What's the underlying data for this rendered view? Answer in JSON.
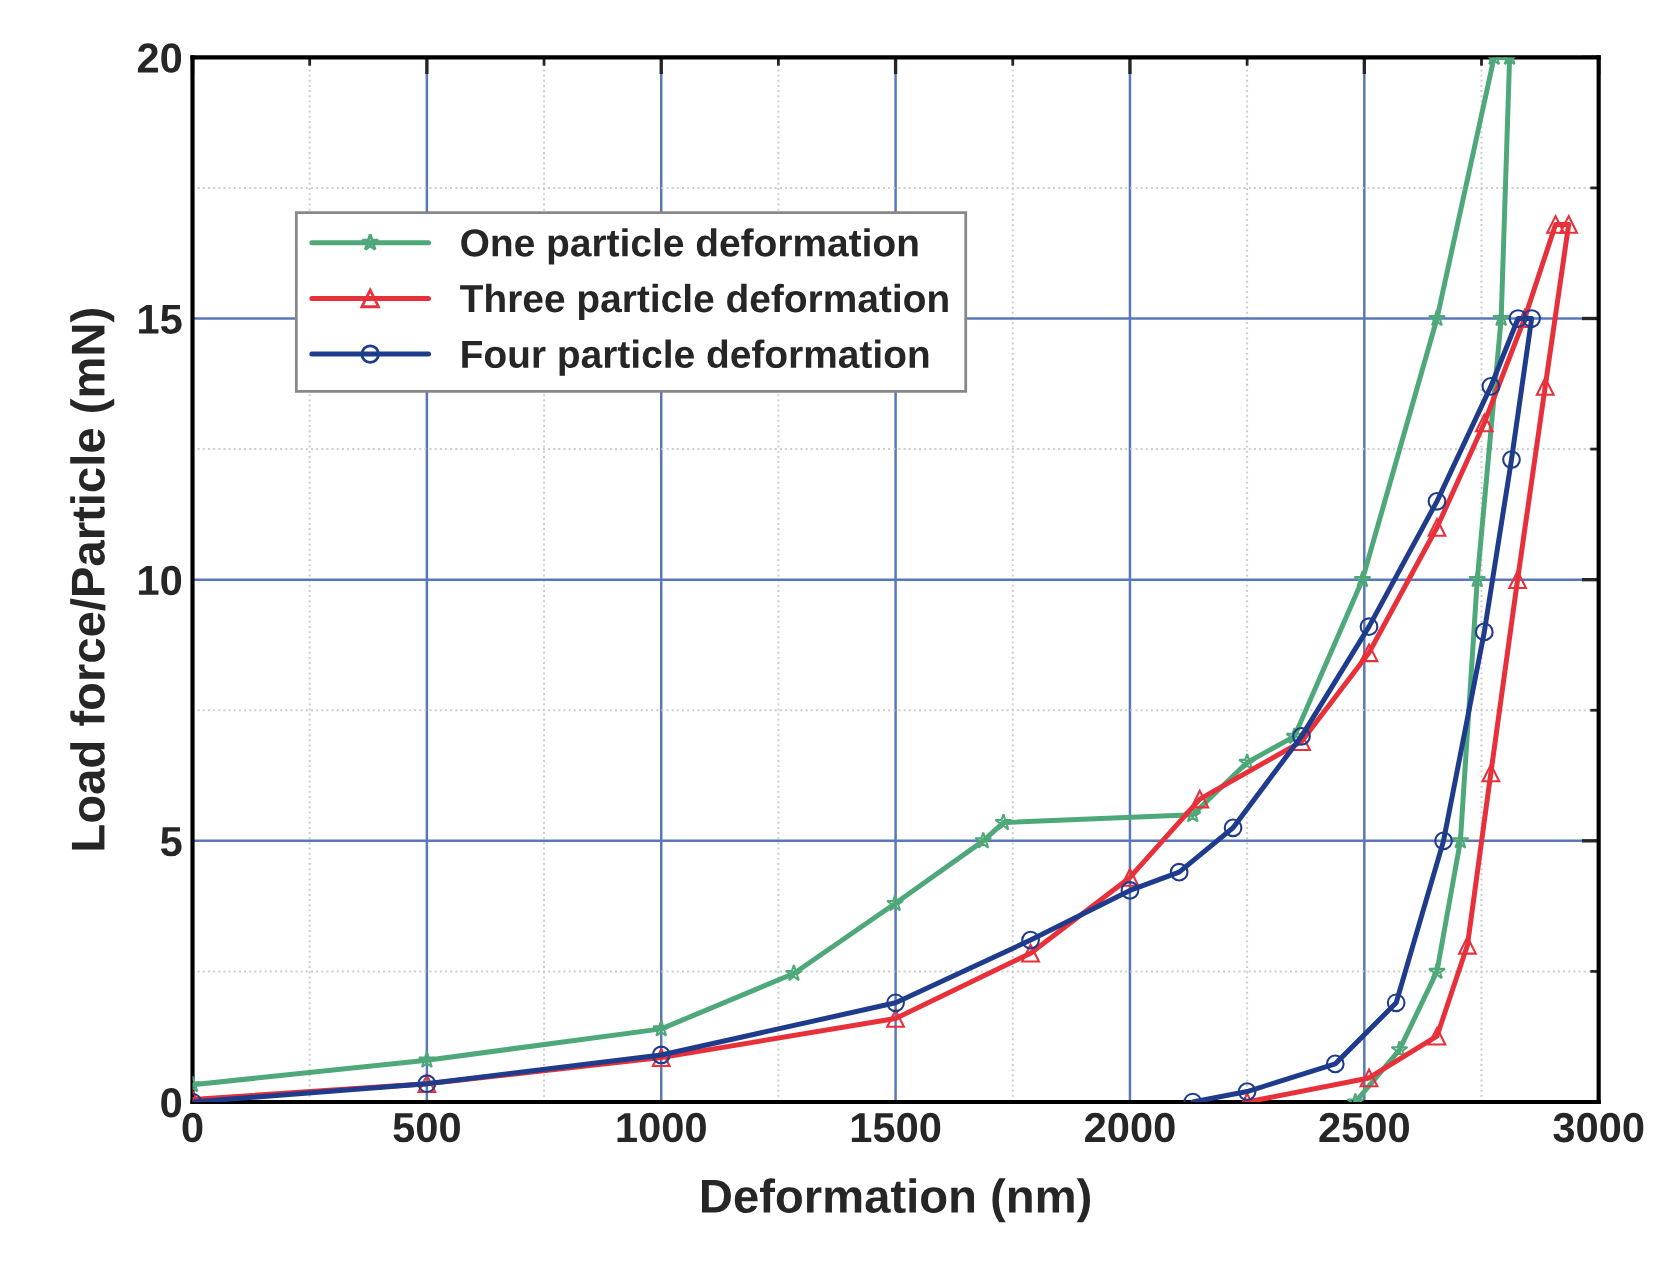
{
  "chart_data": {
    "type": "line",
    "xlabel": "Deformation (nm)",
    "ylabel": "Load force/Particle (mN)",
    "xlim": [
      0,
      3000
    ],
    "xticks": [
      0,
      500,
      1000,
      1500,
      2000,
      2500,
      3000
    ],
    "ylim": [
      0,
      20
    ],
    "yticks": [
      0,
      5,
      10,
      15,
      20
    ],
    "grid": true,
    "legend": "top left",
    "series": [
      {
        "name": "One particle deformation",
        "color": "#4fa87a",
        "marker": "star",
        "x": [
          0,
          500,
          1000,
          1283,
          1499,
          1687,
          1730,
          2134,
          2250,
          2351,
          2496,
          2655,
          2777,
          2810,
          2792,
          2741,
          2705,
          2655,
          2575,
          2481
        ],
        "values": [
          0.33,
          0.8,
          1.4,
          2.46,
          3.8,
          5.0,
          5.35,
          5.5,
          6.5,
          7.0,
          10,
          15,
          20,
          20,
          15,
          10,
          5,
          2.5,
          1,
          0
        ]
      },
      {
        "name": "Three particle deformation",
        "color": "#e8303a",
        "marker": "triangle",
        "x": [
          0,
          500,
          1000,
          1500,
          1788,
          2000,
          2149,
          2366,
          2510,
          2655,
          2756,
          2842,
          2908,
          2936,
          2886,
          2827,
          2770,
          2720,
          2655,
          2510,
          2250
        ],
        "values": [
          0.05,
          0.35,
          0.85,
          1.6,
          2.85,
          4.3,
          5.8,
          6.9,
          8.6,
          11.0,
          13.0,
          15,
          16.8,
          16.8,
          13.7,
          10,
          6.3,
          3.0,
          1.26,
          0.46,
          0
        ]
      },
      {
        "name": "Four particle deformation",
        "color": "#1f3c8c",
        "marker": "circle",
        "x": [
          0,
          500,
          1000,
          1500,
          1788,
          2000,
          2105,
          2220,
          2366,
          2510,
          2655,
          2770,
          2828,
          2857,
          2814,
          2756,
          2669,
          2568,
          2438,
          2250,
          2134
        ],
        "values": [
          0.0,
          0.35,
          0.9,
          1.9,
          3.1,
          4.05,
          4.4,
          5.25,
          7.0,
          9.1,
          11.5,
          13.7,
          15,
          15,
          12.3,
          9.0,
          5.0,
          1.9,
          0.73,
          0.2,
          0
        ]
      }
    ]
  }
}
